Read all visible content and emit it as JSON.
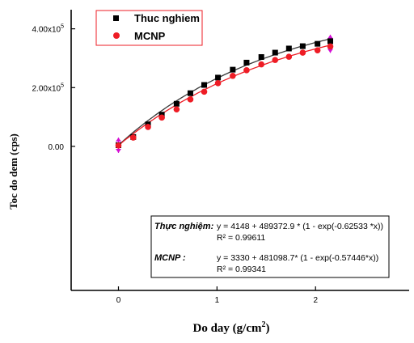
{
  "chart_data": {
    "type": "scatter",
    "title": "",
    "xlabel": "Do day (g/cm",
    "xlabel_sup": "2",
    "xlabel_tail": ")",
    "ylabel": "Toc do dem (cps)",
    "xlim": [
      -0.48,
      2.95
    ],
    "ylim": [
      -490000,
      465000
    ],
    "x_ticks": [
      0,
      1,
      2
    ],
    "x_tick_labels": [
      "0",
      "1",
      "2"
    ],
    "y_ticks": [
      0,
      200000,
      400000
    ],
    "y_tick_labels": [
      {
        "base": "0.00",
        "exp": ""
      },
      {
        "base": "2.00x10",
        "exp": "5"
      },
      {
        "base": "4.00x10",
        "exp": "5"
      }
    ],
    "legend_position": "top-left",
    "series": [
      {
        "name": "Thuc nghiem",
        "marker": "square",
        "color": "#000000",
        "fit_color": "#3a3a3a",
        "fit": {
          "a": 4148,
          "b": 489372.9,
          "k": 0.62533
        },
        "x": [
          0,
          0.15,
          0.3,
          0.44,
          0.59,
          0.73,
          0.87,
          1.01,
          1.16,
          1.3,
          1.45,
          1.59,
          1.73,
          1.87,
          2.02,
          2.15
        ],
        "y": [
          4000,
          32000,
          75000,
          108000,
          145000,
          181000,
          209000,
          234000,
          261000,
          285000,
          304000,
          319000,
          333000,
          341000,
          349000,
          358000
        ]
      },
      {
        "name": "MCNP",
        "marker": "circle",
        "color": "#ee1c25",
        "fit_color": "#ee1c25",
        "fit": {
          "a": 3330,
          "b": 481098.7,
          "k": 0.57446
        },
        "x": [
          0,
          0.15,
          0.3,
          0.44,
          0.59,
          0.73,
          0.87,
          1.01,
          1.16,
          1.3,
          1.45,
          1.59,
          1.73,
          1.87,
          2.02,
          2.15
        ],
        "y": [
          3000,
          30000,
          66000,
          98000,
          126000,
          160000,
          186000,
          215000,
          240000,
          259000,
          279000,
          294000,
          305000,
          319000,
          327000,
          340000
        ]
      }
    ],
    "error_bars": [
      {
        "x": 0,
        "y": 4000,
        "low": -22000,
        "high": 30000,
        "color": "#d40fd4"
      },
      {
        "x": 2.15,
        "y": 350000,
        "low": 318000,
        "high": 380000,
        "color": "#d40fd4"
      }
    ],
    "annotation": {
      "lines": [
        {
          "label": "Thực nghiệm:",
          "equation": "y = 4148 + 489372.9 * (1 - exp(-0.62533 *x))",
          "r2": "R² = 0.99611"
        },
        {
          "label": "MCNP :",
          "equation": "y = 3330 + 481098.7* (1 - exp(-0.57446*x))",
          "r2": "R² = 0.99341"
        }
      ]
    }
  }
}
